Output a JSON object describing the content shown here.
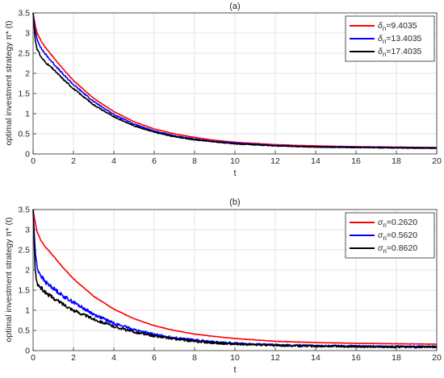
{
  "chart_data": [
    {
      "type": "line",
      "title": "(a)",
      "xlabel": "t",
      "ylabel": "optimal investment strategy π* (t)",
      "xlim": [
        0,
        20
      ],
      "ylim": [
        0,
        3.5
      ],
      "xticks": [
        "0",
        "2",
        "4",
        "6",
        "8",
        "10",
        "12",
        "14",
        "16",
        "18",
        "20"
      ],
      "yticks": [
        "0",
        "0.5",
        "1",
        "1.5",
        "2",
        "2.5",
        "3",
        "3.5"
      ],
      "grid": true,
      "legend_position": "top-right",
      "series": [
        {
          "name": "δn=9.4035",
          "legend_symbol": "δ",
          "legend_subscript": "n",
          "legend_value": "=9.4035",
          "color": "#ff0000",
          "x": [
            0,
            0.1,
            0.2,
            0.4,
            0.6,
            1,
            1.5,
            2,
            3,
            4,
            5,
            6,
            7,
            8,
            9,
            10,
            12,
            14,
            16,
            18,
            20
          ],
          "y": [
            3.5,
            3.2,
            3.0,
            2.8,
            2.65,
            2.4,
            2.1,
            1.82,
            1.38,
            1.05,
            0.8,
            0.62,
            0.5,
            0.41,
            0.34,
            0.29,
            0.23,
            0.2,
            0.18,
            0.17,
            0.16
          ]
        },
        {
          "name": "δn=13.4035",
          "legend_symbol": "δ",
          "legend_subscript": "n",
          "legend_value": "=13.4035",
          "color": "#0000ff",
          "x": [
            0,
            0.1,
            0.2,
            0.4,
            0.6,
            1,
            1.5,
            2,
            3,
            4,
            5,
            6,
            7,
            8,
            9,
            10,
            12,
            14,
            16,
            18,
            20
          ],
          "y": [
            3.5,
            3.05,
            2.85,
            2.62,
            2.48,
            2.25,
            1.97,
            1.72,
            1.3,
            0.98,
            0.74,
            0.57,
            0.45,
            0.37,
            0.31,
            0.27,
            0.21,
            0.18,
            0.17,
            0.16,
            0.15
          ]
        },
        {
          "name": "δn=17.4035",
          "legend_symbol": "δ",
          "legend_subscript": "n",
          "legend_value": "=17.4035",
          "color": "#000000",
          "x": [
            0,
            0.1,
            0.2,
            0.4,
            0.6,
            1,
            1.5,
            2,
            3,
            4,
            5,
            6,
            7,
            8,
            9,
            10,
            12,
            14,
            16,
            18,
            20
          ],
          "y": [
            3.5,
            2.85,
            2.6,
            2.4,
            2.28,
            2.1,
            1.85,
            1.62,
            1.22,
            0.92,
            0.7,
            0.54,
            0.43,
            0.35,
            0.3,
            0.25,
            0.2,
            0.17,
            0.16,
            0.15,
            0.14
          ]
        }
      ]
    },
    {
      "type": "line",
      "title": "(b)",
      "xlabel": "t",
      "ylabel": "optimal investment strategy π* (t)",
      "xlim": [
        0,
        20
      ],
      "ylim": [
        0,
        3.5
      ],
      "xticks": [
        "0",
        "2",
        "4",
        "6",
        "8",
        "10",
        "12",
        "14",
        "16",
        "18",
        "20"
      ],
      "yticks": [
        "0",
        "0.5",
        "1",
        "1.5",
        "2",
        "2.5",
        "3",
        "3.5"
      ],
      "grid": true,
      "legend_position": "top-right",
      "series": [
        {
          "name": "σn=0.2620",
          "legend_symbol": "σ",
          "legend_subscript": "n",
          "legend_value": "=0.2620",
          "color": "#ff0000",
          "x": [
            0,
            0.1,
            0.2,
            0.4,
            0.6,
            1,
            1.5,
            2,
            3,
            4,
            5,
            6,
            7,
            8,
            9,
            10,
            12,
            14,
            16,
            18,
            20
          ],
          "y": [
            3.5,
            3.2,
            2.95,
            2.72,
            2.58,
            2.35,
            2.05,
            1.78,
            1.35,
            1.03,
            0.79,
            0.62,
            0.5,
            0.41,
            0.35,
            0.3,
            0.23,
            0.2,
            0.18,
            0.17,
            0.16
          ]
        },
        {
          "name": "σn=0.5620",
          "legend_symbol": "σ",
          "legend_subscript": "n",
          "legend_value": "=0.5620",
          "color": "#0000ff",
          "x": [
            0,
            0.1,
            0.2,
            0.4,
            0.6,
            1,
            1.5,
            2,
            3,
            4,
            5,
            6,
            7,
            8,
            9,
            10,
            12,
            14,
            16,
            18,
            20
          ],
          "y": [
            3.5,
            2.5,
            2.05,
            1.85,
            1.7,
            1.55,
            1.35,
            1.2,
            0.9,
            0.68,
            0.52,
            0.4,
            0.32,
            0.26,
            0.21,
            0.18,
            0.14,
            0.12,
            0.11,
            0.1,
            0.1
          ]
        },
        {
          "name": "σn=0.8620",
          "legend_symbol": "σ",
          "legend_subscript": "n",
          "legend_value": "=0.8620",
          "color": "#000000",
          "x": [
            0,
            0.1,
            0.2,
            0.4,
            0.6,
            1,
            1.5,
            2,
            3,
            4,
            5,
            6,
            7,
            8,
            9,
            10,
            12,
            14,
            16,
            18,
            20
          ],
          "y": [
            3.5,
            2.0,
            1.65,
            1.55,
            1.45,
            1.3,
            1.15,
            1.0,
            0.78,
            0.6,
            0.46,
            0.36,
            0.29,
            0.23,
            0.19,
            0.16,
            0.13,
            0.11,
            0.1,
            0.09,
            0.09
          ]
        }
      ]
    }
  ]
}
